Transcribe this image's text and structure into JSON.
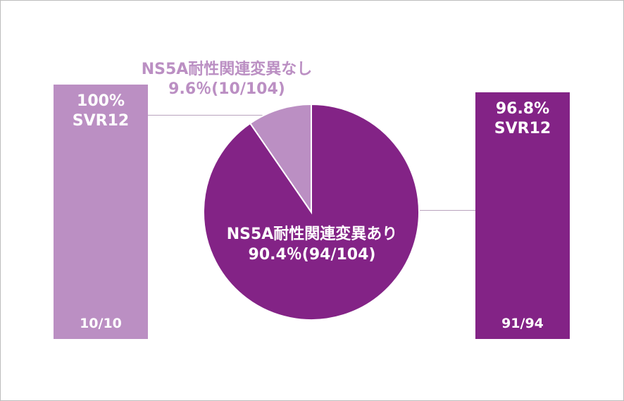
{
  "chart_data": {
    "type": "pie",
    "slices": [
      {
        "name": "NS5A耐性関連変異あり",
        "percent": 90.4,
        "fraction_text": "94/104",
        "color": "#832386"
      },
      {
        "name": "NS5A耐性関連変異なし",
        "percent": 9.6,
        "fraction_text": "10/104",
        "color": "#bb8fc3"
      }
    ]
  },
  "pie_labels": {
    "yes_name": "NS5A耐性関連変異あり",
    "yes_value": "90.4％(94/104)",
    "no_name": "NS5A耐性関連変異なし",
    "no_value": "9.6％(10/104)"
  },
  "bars": {
    "left": {
      "pct": "100%",
      "label": "SVR12",
      "count": "10/10",
      "svr_percent": 100,
      "color": "#bb8fc3"
    },
    "right": {
      "pct": "96.8%",
      "label": "SVR12",
      "count": "91/94",
      "svr_percent": 96.8,
      "color": "#832386"
    }
  }
}
